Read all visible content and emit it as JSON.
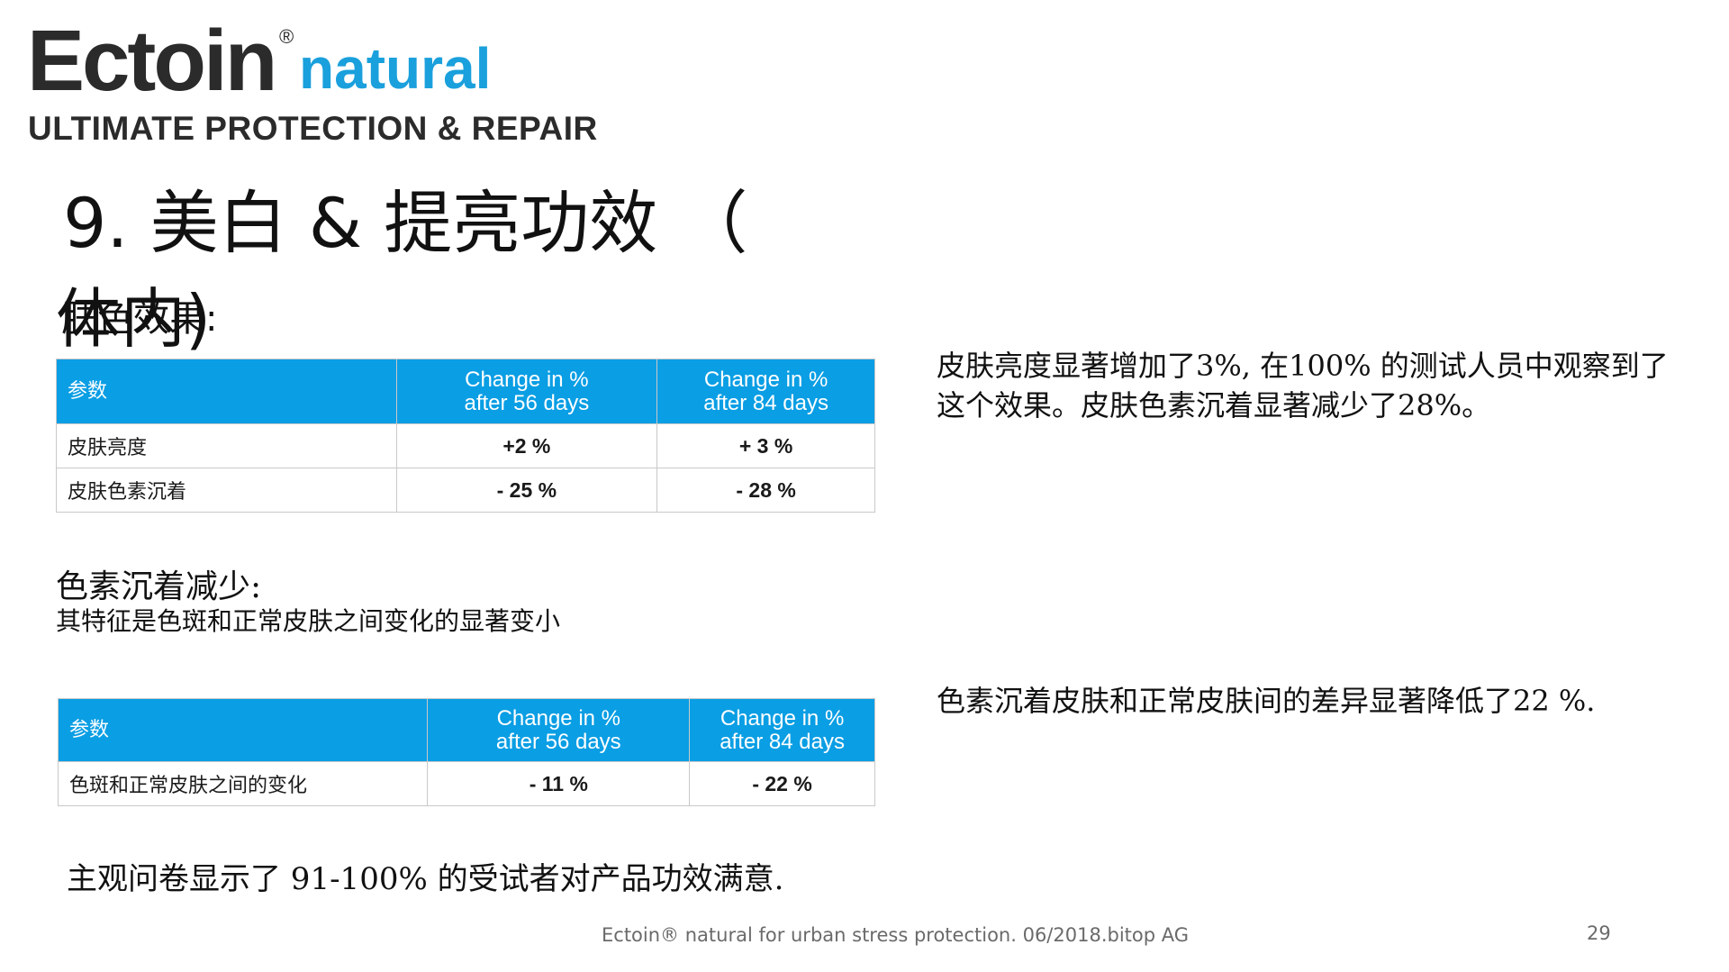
{
  "logo": {
    "brand": "Ectoin",
    "registered": "®",
    "natural": "natural",
    "tagline": "ULTIMATE PROTECTION & REPAIR"
  },
  "title": {
    "line1": "9. 美白 & 提亮功效 （",
    "line2": "体内)"
  },
  "overlap_heading": "肤色效果:",
  "table1": {
    "headers": [
      "参数",
      "Change in %\nafter 56 days",
      "Change in %\nafter 84 days"
    ],
    "rows": [
      {
        "name": "皮肤亮度",
        "d56": "+2 %",
        "d84": "+ 3 %"
      },
      {
        "name": "皮肤色素沉着",
        "d56": "- 25 %",
        "d84": "- 28 %"
      }
    ]
  },
  "right_text1": "皮肤亮度显著增加了3%, 在100% 的测试人员中观察到了这个效果。皮肤色素沉着显著减少了28%。",
  "section2": {
    "heading": "色素沉着减少:",
    "subheading": "其特征是色斑和正常皮肤之间变化的显著变小"
  },
  "table2": {
    "headers": [
      "参数",
      "Change in %\nafter 56 days",
      "Change in %\nafter 84 days"
    ],
    "rows": [
      {
        "name": "色斑和正常皮肤之间的变化",
        "d56": "- 11 %",
        "d84": "- 22 %"
      }
    ]
  },
  "right_text2": "色素沉着皮肤和正常皮肤间的差异显著降低了22 %.",
  "survey_text": "主观问卷显示了 91-100% 的受试者对产品功效满意.",
  "footer": "Ectoin® natural for urban stress protection. 06/2018.bitop AG",
  "page_number": "29",
  "colors": {
    "table_header": "#0a9ee4",
    "brand_blue": "#1aa0dc",
    "brand_dark": "#2b2b2b"
  }
}
